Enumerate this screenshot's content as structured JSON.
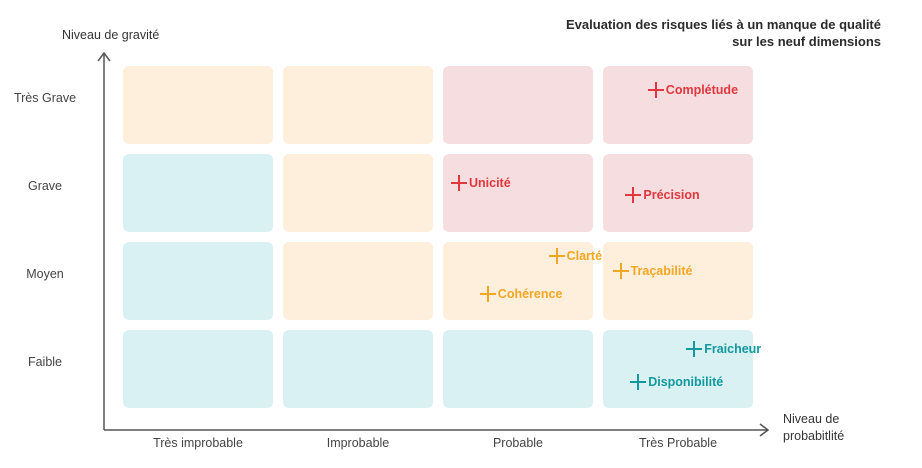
{
  "chart_data": {
    "type": "scatter",
    "title": [
      "Evaluation des risques liés à un manque de qualité",
      "sur les neuf dimensions"
    ],
    "ylabel": "Niveau de gravité",
    "xlabel": [
      "Niveau de",
      "probabitlité"
    ],
    "x_categories": [
      "Très improbable",
      "Improbable",
      "Probable",
      "Très Probable"
    ],
    "y_categories": [
      "Faible",
      "Moyen",
      "Grave",
      "Très Grave"
    ],
    "xlim": [
      0,
      4
    ],
    "ylim": [
      0,
      4
    ],
    "zone_colors": {
      "low": "#d9f1f2",
      "medium": "#fdefdc",
      "high": "#f5dde0"
    },
    "cell_zones": [
      [
        "low",
        "low",
        "low",
        "low"
      ],
      [
        "low",
        "medium",
        "medium",
        "medium"
      ],
      [
        "low",
        "medium",
        "high",
        "high"
      ],
      [
        "medium",
        "medium",
        "high",
        "high"
      ]
    ],
    "colors": {
      "high": "#e0383e",
      "medium": "#f5a623",
      "low": "#11999e"
    },
    "points": [
      {
        "label": "Complétude",
        "x": 3.33,
        "y": 3.61,
        "risk": "high"
      },
      {
        "label": "Unicité",
        "x": 2.1,
        "y": 2.56,
        "risk": "high"
      },
      {
        "label": "Précision",
        "x": 3.19,
        "y": 2.42,
        "risk": "high"
      },
      {
        "label": "Clarté",
        "x": 2.71,
        "y": 1.73,
        "risk": "medium"
      },
      {
        "label": "Traçabilité",
        "x": 3.11,
        "y": 1.56,
        "risk": "medium"
      },
      {
        "label": "Cohérence",
        "x": 2.28,
        "y": 1.3,
        "risk": "medium"
      },
      {
        "label": "Fraicheur",
        "x": 3.57,
        "y": 0.67,
        "risk": "low"
      },
      {
        "label": "Disponibilité",
        "x": 3.22,
        "y": 0.3,
        "risk": "low"
      }
    ]
  }
}
